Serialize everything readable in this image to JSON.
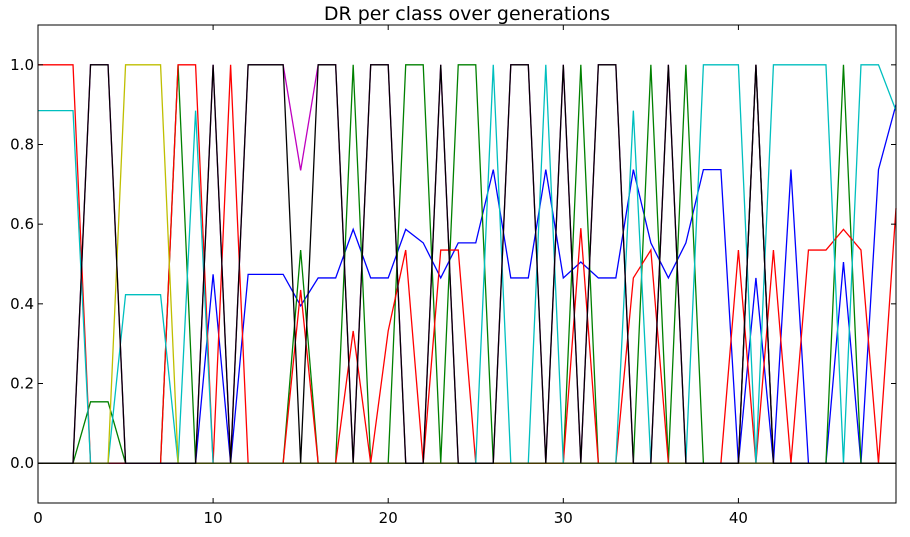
{
  "chart_data": {
    "type": "line",
    "title": "DR per class over generations",
    "xlabel": "",
    "ylabel": "",
    "xlim": [
      0,
      49
    ],
    "ylim": [
      -0.1,
      1.1
    ],
    "xticks": [
      0,
      10,
      20,
      30,
      40
    ],
    "xtick_labels": [
      "0",
      "10",
      "20",
      "30",
      "40"
    ],
    "yticks": [
      0.0,
      0.2,
      0.4,
      0.6,
      0.8,
      1.0
    ],
    "ytick_labels": [
      "0.0",
      "0.2",
      "0.4",
      "0.6",
      "0.8",
      "1.0"
    ],
    "grid": false,
    "legend": "none",
    "x": [
      0,
      1,
      2,
      3,
      4,
      5,
      6,
      7,
      8,
      9,
      10,
      11,
      12,
      13,
      14,
      15,
      16,
      17,
      18,
      19,
      20,
      21,
      22,
      23,
      24,
      25,
      26,
      27,
      28,
      29,
      30,
      31,
      32,
      33,
      34,
      35,
      36,
      37,
      38,
      39,
      40,
      41,
      42,
      43,
      44,
      45,
      46,
      47,
      48,
      49
    ],
    "series": [
      {
        "color": "#0000ff",
        "values": [
          0,
          0,
          0,
          0,
          0,
          0,
          0,
          0,
          0,
          0,
          0.474,
          0,
          0.474,
          0.474,
          0.474,
          0.395,
          0.465,
          0.465,
          0.587,
          0.465,
          0.465,
          0.587,
          0.553,
          0.465,
          0.553,
          0.553,
          0.737,
          0.465,
          0.465,
          0.737,
          0.465,
          0.505,
          0.465,
          0.465,
          0.737,
          0.553,
          0.465,
          0.553,
          0.737,
          0.737,
          0,
          0.465,
          0,
          0.737,
          0,
          0,
          0.505,
          0,
          0.737,
          0.9
        ]
      },
      {
        "color": "#008000",
        "values": [
          0,
          0,
          0,
          0.154,
          0.154,
          0,
          0,
          0,
          1,
          0,
          0,
          0,
          0,
          0,
          0,
          0.535,
          0,
          0,
          1,
          0,
          0,
          1,
          1,
          0,
          1,
          1,
          0,
          0,
          0,
          0,
          0,
          1,
          0,
          0,
          0,
          1,
          0,
          1,
          0,
          0,
          0,
          1,
          0,
          0,
          0,
          0,
          1,
          0,
          0,
          0
        ]
      },
      {
        "color": "#ff0000",
        "values": [
          1,
          1,
          1,
          0,
          0,
          0,
          0,
          0,
          1,
          1,
          0,
          1,
          0,
          0,
          0,
          0.435,
          0,
          0,
          0.332,
          0,
          0.332,
          0.535,
          0,
          0.535,
          0.535,
          0,
          0,
          0,
          0,
          0,
          0,
          0.59,
          0,
          0,
          0.465,
          0.535,
          0,
          0,
          0,
          0,
          0.535,
          0,
          0.535,
          0,
          0.535,
          0.535,
          0.587,
          0.535,
          0,
          0.64
        ]
      },
      {
        "color": "#00bfbf",
        "values": [
          0.885,
          0.885,
          0.885,
          0,
          0,
          0.423,
          0.423,
          0.423,
          0,
          0.885,
          0,
          0,
          0,
          0,
          0,
          0,
          0,
          0,
          0,
          0,
          0,
          0,
          0,
          0,
          0,
          0,
          1,
          0,
          0,
          1,
          0,
          0,
          0,
          0,
          0.885,
          0,
          0,
          0,
          1,
          1,
          1,
          0,
          1,
          1,
          1,
          1,
          0,
          1,
          1,
          0.885
        ]
      },
      {
        "color": "#bf00bf",
        "values": [
          0,
          0,
          0,
          1,
          1,
          0,
          0,
          0,
          0,
          0,
          1,
          0,
          1,
          1,
          1,
          0.735,
          1,
          1,
          0,
          1,
          1,
          0,
          0,
          1,
          0,
          0,
          0,
          1,
          1,
          0,
          1,
          0,
          1,
          1,
          0,
          0,
          1,
          0,
          0,
          0,
          0,
          1,
          0,
          0,
          0,
          0,
          0,
          0,
          0,
          0
        ]
      },
      {
        "color": "#bfbf00",
        "values": [
          0,
          0,
          0,
          0,
          0,
          1,
          1,
          1,
          0,
          0,
          0,
          0,
          0,
          0,
          0,
          0,
          0,
          0,
          0,
          0,
          0,
          0,
          0,
          0,
          0,
          0,
          0,
          0,
          0,
          0,
          0,
          0,
          0,
          0,
          0,
          0,
          0,
          0,
          0,
          0,
          0,
          0,
          0,
          0,
          0,
          0,
          0,
          0,
          0,
          0
        ]
      },
      {
        "color": "#000000",
        "values": [
          0,
          0,
          0,
          1,
          1,
          0,
          0,
          0,
          0,
          0,
          1,
          0,
          1,
          1,
          1,
          0,
          1,
          1,
          0,
          1,
          1,
          0,
          0,
          1,
          0,
          0,
          0,
          1,
          1,
          0,
          1,
          0,
          1,
          1,
          0,
          0,
          1,
          0,
          0,
          0,
          0,
          1,
          0,
          0,
          0,
          0,
          0,
          0,
          0,
          0
        ]
      }
    ]
  }
}
